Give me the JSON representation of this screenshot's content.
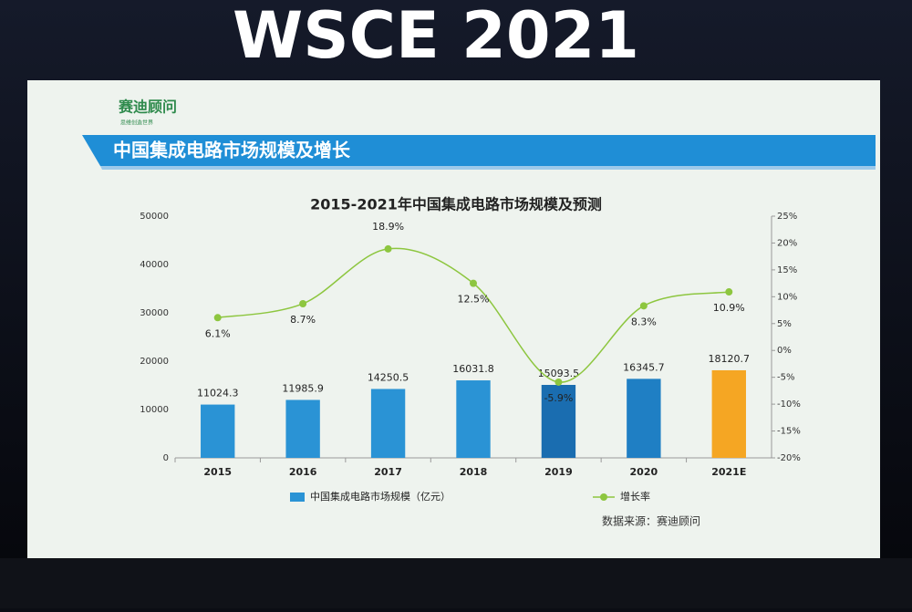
{
  "page": {
    "event": "WSCE 2021",
    "logo": "赛迪顾问",
    "logo_tagline": "思维创造世界",
    "slide_title": "中国集成电路市场规模及增长",
    "source": "数据来源：赛迪顾问"
  },
  "chart_data": {
    "type": "bar_line",
    "title": "2015-2021年中国集成电路市场规模及预测",
    "categories": [
      "2015",
      "2016",
      "2017",
      "2018",
      "2019",
      "2020",
      "2021E"
    ],
    "series": [
      {
        "name": "中国集成电路市场规模（亿元）",
        "color": "#2a93d5",
        "colors": [
          "#2a93d5",
          "#2a93d5",
          "#2a93d5",
          "#2a93d5",
          "#1a6db0",
          "#1f7fc4",
          "#f5a623"
        ],
        "values": [
          11024.3,
          11985.9,
          14250.5,
          16031.8,
          15093.5,
          16345.7,
          18120.7
        ]
      },
      {
        "name": "增长率",
        "color": "#8dc63f",
        "axis": "y2",
        "values": [
          6.1,
          8.7,
          18.9,
          12.5,
          -5.9,
          8.3,
          10.9
        ],
        "value_labels": [
          "6.1%",
          "8.7%",
          "18.9%",
          "12.5%",
          "-5.9%",
          "8.3%",
          "10.9%"
        ]
      }
    ],
    "ylim": [
      0,
      50000
    ],
    "yticks": [
      0,
      10000,
      20000,
      30000,
      40000,
      50000
    ],
    "y2lim": [
      -20,
      25
    ],
    "y2ticks": [
      {
        "value": -20,
        "label": "-20%"
      },
      {
        "value": -15,
        "label": "-15%"
      },
      {
        "value": -10,
        "label": "-10%"
      },
      {
        "value": -5,
        "label": "-5%"
      },
      {
        "value": 0,
        "label": "0%"
      },
      {
        "value": 5,
        "label": "5%"
      },
      {
        "value": 10,
        "label": "10%"
      },
      {
        "value": 15,
        "label": "15%"
      },
      {
        "value": 20,
        "label": "20%"
      },
      {
        "value": 25,
        "label": "25%"
      }
    ]
  }
}
